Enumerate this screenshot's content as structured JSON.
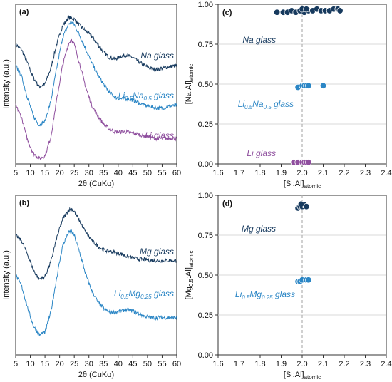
{
  "chart_data": [
    {
      "panel": "(a)",
      "type": "line",
      "xlabel": "2θ (CuKα)",
      "ylabel": "Intensity (a.u.)",
      "xlim": [
        5,
        60
      ],
      "xticks": [
        5,
        10,
        15,
        20,
        25,
        30,
        35,
        40,
        45,
        50,
        55,
        60
      ],
      "x": [
        5,
        7,
        9,
        11,
        13,
        15,
        17,
        19,
        21,
        23,
        24,
        25,
        27,
        29,
        31,
        33,
        35,
        37,
        39,
        41,
        43,
        45,
        47,
        49,
        51,
        53,
        55,
        57,
        60
      ],
      "series": [
        {
          "name": "Na glass",
          "color": "#173a5e",
          "values": [
            0.88,
            0.84,
            0.74,
            0.63,
            0.56,
            0.58,
            0.7,
            0.88,
            1.02,
            1.08,
            1.08,
            1.07,
            1.02,
            0.98,
            0.94,
            0.88,
            0.82,
            0.78,
            0.77,
            0.79,
            0.8,
            0.78,
            0.75,
            0.72,
            0.7,
            0.69,
            0.7,
            0.71,
            0.72
          ]
        },
        {
          "name": "Li0.5Na0.5 glass",
          "color": "#2b86c5",
          "values": [
            0.72,
            0.64,
            0.48,
            0.34,
            0.27,
            0.3,
            0.45,
            0.7,
            0.93,
            1.03,
            1.05,
            1.03,
            0.94,
            0.84,
            0.74,
            0.65,
            0.58,
            0.52,
            0.48,
            0.47,
            0.47,
            0.46,
            0.44,
            0.42,
            0.41,
            0.4,
            0.4,
            0.41,
            0.42
          ]
        },
        {
          "name": "Li glass",
          "color": "#8f4f9e",
          "values": [
            0.42,
            0.33,
            0.16,
            0.06,
            0.02,
            0.04,
            0.18,
            0.46,
            0.72,
            0.88,
            0.92,
            0.88,
            0.72,
            0.55,
            0.42,
            0.34,
            0.28,
            0.24,
            0.22,
            0.22,
            0.22,
            0.21,
            0.2,
            0.19,
            0.18,
            0.17,
            0.17,
            0.17,
            0.17
          ]
        }
      ],
      "annotations": [
        {
          "text": "Na glass",
          "color": "#173a5e"
        },
        {
          "base": "Li",
          "sub1": "0.5",
          "mid": "Na",
          "sub2": "0.5",
          "tail": " glass",
          "color": "#2b86c5"
        },
        {
          "text": "Li glass",
          "color": "#8f4f9e"
        }
      ]
    },
    {
      "panel": "(c)",
      "type": "scatter",
      "xlabel_main": "[Si:Al]",
      "xlabel_sub": "atomic",
      "ylabel_main": "[Na:Al]",
      "ylabel_sub": "atomic",
      "xlim": [
        1.6,
        2.4
      ],
      "ylim": [
        0,
        1
      ],
      "xticks": [
        "1.6",
        "1.7",
        "1.8",
        "1.9",
        "2.0",
        "2.1",
        "2.2",
        "2.3",
        "2.4"
      ],
      "yticks": [
        "0.00",
        "0.25",
        "0.50",
        "0.75",
        "1.00"
      ],
      "reference_x": 2.0,
      "series": [
        {
          "name": "Na glass",
          "color": "#173a5e",
          "points": [
            [
              1.88,
              0.95
            ],
            [
              1.91,
              0.95
            ],
            [
              1.93,
              0.95
            ],
            [
              1.95,
              0.96
            ],
            [
              1.97,
              0.95
            ],
            [
              1.99,
              0.96
            ],
            [
              2.01,
              0.95
            ],
            [
              2.03,
              0.96
            ],
            [
              2.05,
              0.96
            ],
            [
              2.07,
              0.97
            ],
            [
              2.09,
              0.96
            ],
            [
              2.11,
              0.96
            ],
            [
              2.13,
              0.96
            ],
            [
              2.15,
              0.97
            ],
            [
              2.17,
              0.97
            ],
            [
              2.18,
              0.96
            ],
            [
              2.0,
              0.97
            ],
            [
              2.02,
              0.97
            ]
          ]
        },
        {
          "name": "Li0.5Na0.5 glass",
          "color": "#2b86c5",
          "points": [
            [
              1.98,
              0.48
            ],
            [
              2.0,
              0.49
            ],
            [
              2.01,
              0.49
            ],
            [
              2.02,
              0.49
            ],
            [
              2.03,
              0.49
            ],
            [
              2.1,
              0.49
            ]
          ]
        },
        {
          "name": "Li glass",
          "color": "#8f4f9e",
          "points": [
            [
              1.96,
              0.01
            ],
            [
              1.98,
              0.01
            ],
            [
              2.0,
              0.01
            ],
            [
              2.01,
              0.01
            ],
            [
              2.02,
              0.01
            ],
            [
              2.03,
              0.01
            ]
          ]
        }
      ],
      "annotations": [
        {
          "text": "Na glass",
          "color": "#173a5e"
        },
        {
          "base": "Li",
          "sub1": "0.5",
          "mid": "Na",
          "sub2": "0.5",
          "tail": " glass",
          "color": "#2b86c5"
        },
        {
          "text": "Li glass",
          "color": "#8f4f9e"
        }
      ]
    },
    {
      "panel": "(b)",
      "type": "line",
      "xlabel": "2θ (CuKα)",
      "ylabel": "Intensity (a.u.)",
      "xlim": [
        5,
        60
      ],
      "xticks": [
        5,
        10,
        15,
        20,
        25,
        30,
        35,
        40,
        45,
        50,
        55,
        60
      ],
      "x": [
        5,
        7,
        9,
        11,
        13,
        15,
        17,
        19,
        21,
        23,
        24,
        25,
        27,
        29,
        31,
        33,
        35,
        37,
        39,
        41,
        43,
        45,
        47,
        49,
        51,
        53,
        55,
        57,
        60
      ],
      "series": [
        {
          "name": "Mg glass",
          "color": "#173a5e",
          "values": [
            0.88,
            0.84,
            0.74,
            0.62,
            0.55,
            0.57,
            0.68,
            0.86,
            1.0,
            1.07,
            1.08,
            1.06,
            0.98,
            0.9,
            0.84,
            0.8,
            0.77,
            0.76,
            0.75,
            0.74,
            0.72,
            0.71,
            0.7,
            0.7,
            0.69,
            0.69,
            0.69,
            0.69,
            0.69
          ]
        },
        {
          "name": "Li0.5Mg0.25 glass",
          "color": "#2b86c5",
          "values": [
            0.58,
            0.5,
            0.34,
            0.2,
            0.13,
            0.15,
            0.3,
            0.56,
            0.8,
            0.9,
            0.91,
            0.88,
            0.74,
            0.58,
            0.46,
            0.38,
            0.33,
            0.3,
            0.3,
            0.31,
            0.32,
            0.31,
            0.29,
            0.27,
            0.26,
            0.26,
            0.26,
            0.26,
            0.26
          ]
        }
      ],
      "annotations": [
        {
          "text": "Mg glass",
          "color": "#173a5e"
        },
        {
          "base": "Li",
          "sub1": "0.5",
          "mid": "Mg",
          "sub2": "0.25",
          "tail": " glass",
          "color": "#2b86c5"
        }
      ]
    },
    {
      "panel": "(d)",
      "type": "scatter",
      "xlabel_main": "[Si:Al]",
      "xlabel_sub": "atomic",
      "ylabel_main": "[Mg",
      "ylabel_sub1": "0.5",
      "ylabel_tail": ":Al]",
      "ylabel_sub": "atomic",
      "xlim": [
        1.6,
        2.4
      ],
      "ylim": [
        0,
        1
      ],
      "xticks": [
        "1.6",
        "1.7",
        "1.8",
        "1.9",
        "2.0",
        "2.1",
        "2.2",
        "2.3",
        "2.4"
      ],
      "yticks": [
        "0.00",
        "0.25",
        "0.50",
        "0.75",
        "1.00"
      ],
      "reference_x": 2.0,
      "series": [
        {
          "name": "Mg glass",
          "color": "#173a5e",
          "points": [
            [
              1.98,
              0.92
            ],
            [
              1.99,
              0.93
            ],
            [
              2.0,
              0.93
            ],
            [
              2.01,
              0.94
            ],
            [
              2.02,
              0.93
            ],
            [
              1.995,
              0.945
            ]
          ]
        },
        {
          "name": "Li0.5Mg0.25 glass",
          "color": "#2b86c5",
          "points": [
            [
              1.98,
              0.46
            ],
            [
              1.99,
              0.46
            ],
            [
              2.0,
              0.47
            ],
            [
              2.02,
              0.47
            ],
            [
              2.03,
              0.47
            ]
          ]
        }
      ],
      "annotations": [
        {
          "text": "Mg glass",
          "color": "#173a5e"
        },
        {
          "base": "Li",
          "sub1": "0.5",
          "mid": "Mg",
          "sub2": "0.25",
          "tail": " glass",
          "color": "#2b86c5"
        }
      ]
    }
  ]
}
